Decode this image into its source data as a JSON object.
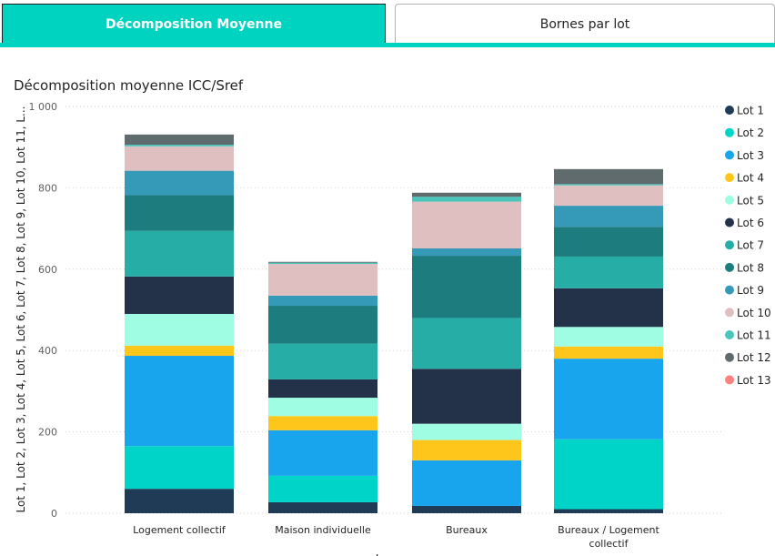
{
  "tabs": [
    {
      "label": "Décomposition Moyenne",
      "active": true
    },
    {
      "label": "Bornes par lot",
      "active": false
    }
  ],
  "colors": {
    "accent": "#00d4c0"
  },
  "chart_data": {
    "type": "bar",
    "stacked": true,
    "title": "Décomposition moyenne ICC/Sref",
    "ylabel": "Lot 1, Lot 2, Lot 3, Lot 4, Lot 5, Lot 6, Lot 7, Lot 8, Lot 9, Lot 10, Lot 11, L...",
    "ylabel_display": "Lot 1, Lot 2, Lot 3, Lot 4, Lot 5, Lot 6, Lot 7, Lot 8, Lot 9, Lot 10, Lot 11, L...",
    "xlabel": "L...",
    "ylim": [
      0,
      1000
    ],
    "yticks": [
      0,
      200,
      400,
      600,
      800,
      1000
    ],
    "ytick_labels": [
      "0",
      "200",
      "400",
      "600",
      "800",
      "1 000"
    ],
    "grid": true,
    "legend_position": "right",
    "categories": [
      "Logement collectif",
      "Maison individuelle",
      "Bureaux",
      "Bureaux / Logement collectif"
    ],
    "category_lines": [
      [
        "Logement collectif"
      ],
      [
        "Maison individuelle"
      ],
      [
        "Bureaux"
      ],
      [
        "Bureaux / Logement",
        "collectif"
      ]
    ],
    "series": [
      {
        "name": "Lot 1",
        "color": "#1f3b56",
        "values": [
          60,
          27,
          18,
          10
        ]
      },
      {
        "name": "Lot 2",
        "color": "#00d4c8",
        "values": [
          105,
          65,
          0,
          172
        ]
      },
      {
        "name": "Lot 3",
        "color": "#18a5ee",
        "values": [
          222,
          112,
          112,
          198
        ]
      },
      {
        "name": "Lot 4",
        "color": "#fec61b",
        "values": [
          25,
          35,
          50,
          30
        ]
      },
      {
        "name": "Lot 5",
        "color": "#9efde3",
        "values": [
          78,
          45,
          40,
          48
        ]
      },
      {
        "name": "Lot 6",
        "color": "#233149",
        "values": [
          92,
          45,
          135,
          95
        ]
      },
      {
        "name": "Lot 7",
        "color": "#26ada6",
        "values": [
          112,
          88,
          125,
          78
        ]
      },
      {
        "name": "Lot 8",
        "color": "#1d7c7d",
        "values": [
          88,
          93,
          153,
          73
        ]
      },
      {
        "name": "Lot 9",
        "color": "#3599b8",
        "values": [
          60,
          25,
          18,
          52
        ]
      },
      {
        "name": "Lot 10",
        "color": "#dfbfbf",
        "values": [
          60,
          78,
          115,
          50
        ]
      },
      {
        "name": "Lot 11",
        "color": "#4ac5bb",
        "values": [
          4,
          3,
          12,
          3
        ]
      },
      {
        "name": "Lot 12",
        "color": "#5f6b6d",
        "values": [
          25,
          2,
          10,
          37
        ]
      },
      {
        "name": "Lot 13",
        "color": "#fb8281",
        "values": [
          0,
          0,
          0,
          0
        ]
      }
    ]
  }
}
